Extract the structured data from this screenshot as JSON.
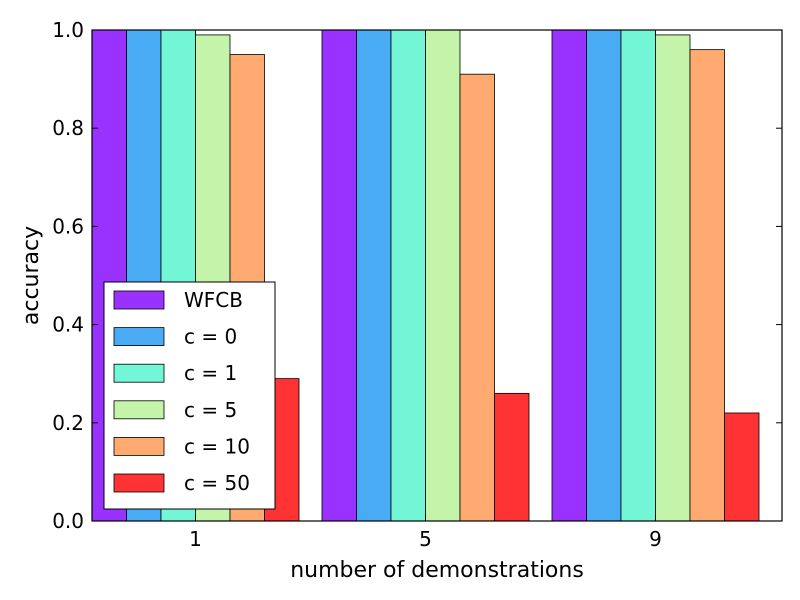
{
  "chart_data": {
    "type": "bar",
    "xlabel": "number of demonstrations",
    "ylabel": "accuracy",
    "ylim": [
      0.0,
      1.0
    ],
    "yticks": [
      "0.0",
      "0.2",
      "0.4",
      "0.6",
      "0.8",
      "1.0"
    ],
    "categories": [
      "1",
      "5",
      "9"
    ],
    "grid": false,
    "legend_position": "lower-left",
    "series": [
      {
        "name": "WFCB",
        "color": "#9932ff",
        "values": [
          1.0,
          1.0,
          1.0
        ]
      },
      {
        "name": "c = 0",
        "color": "#4aabf5",
        "values": [
          1.0,
          1.0,
          1.0
        ]
      },
      {
        "name": "c = 1",
        "color": "#72f6d5",
        "values": [
          1.0,
          1.0,
          1.0
        ]
      },
      {
        "name": "c = 5",
        "color": "#c3f4a9",
        "values": [
          0.99,
          1.0,
          0.99
        ]
      },
      {
        "name": "c = 10",
        "color": "#ffaa71",
        "values": [
          0.95,
          0.91,
          0.96
        ]
      },
      {
        "name": "c = 50",
        "color": "#ff3333",
        "values": [
          0.29,
          0.26,
          0.22
        ]
      }
    ]
  }
}
